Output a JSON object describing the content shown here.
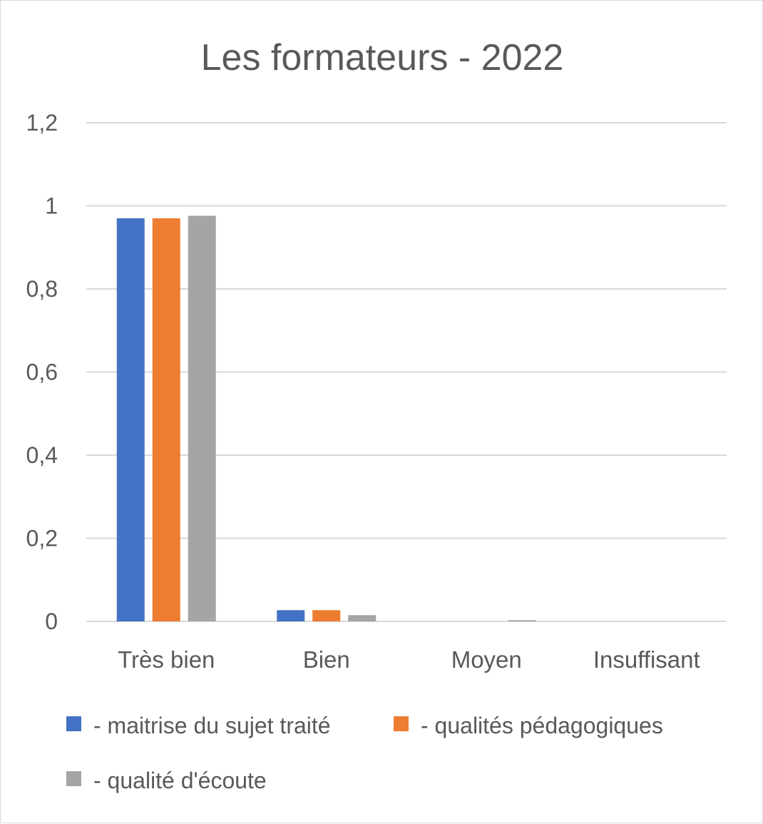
{
  "chart_data": {
    "type": "bar",
    "title": "Les formateurs - 2022",
    "categories": [
      "Très bien",
      "Bien",
      "Moyen",
      "Insuffisant"
    ],
    "series": [
      {
        "name": "- maitrise du sujet traité",
        "color": "#4472c4",
        "values": [
          0.97,
          0.027,
          0,
          0
        ]
      },
      {
        "name": "- qualités pédagogiques",
        "color": "#ed7d31",
        "values": [
          0.97,
          0.027,
          0,
          0
        ]
      },
      {
        "name": "- qualité d'écoute",
        "color": "#a5a5a5",
        "values": [
          0.976,
          0.015,
          0.003,
          0
        ]
      }
    ],
    "y_ticks": [
      "0",
      "0,2",
      "0,4",
      "0,6",
      "0,8",
      "1",
      "1,2"
    ],
    "ylim": [
      0,
      1.2
    ],
    "grid": true,
    "legend_position": "bottom"
  }
}
